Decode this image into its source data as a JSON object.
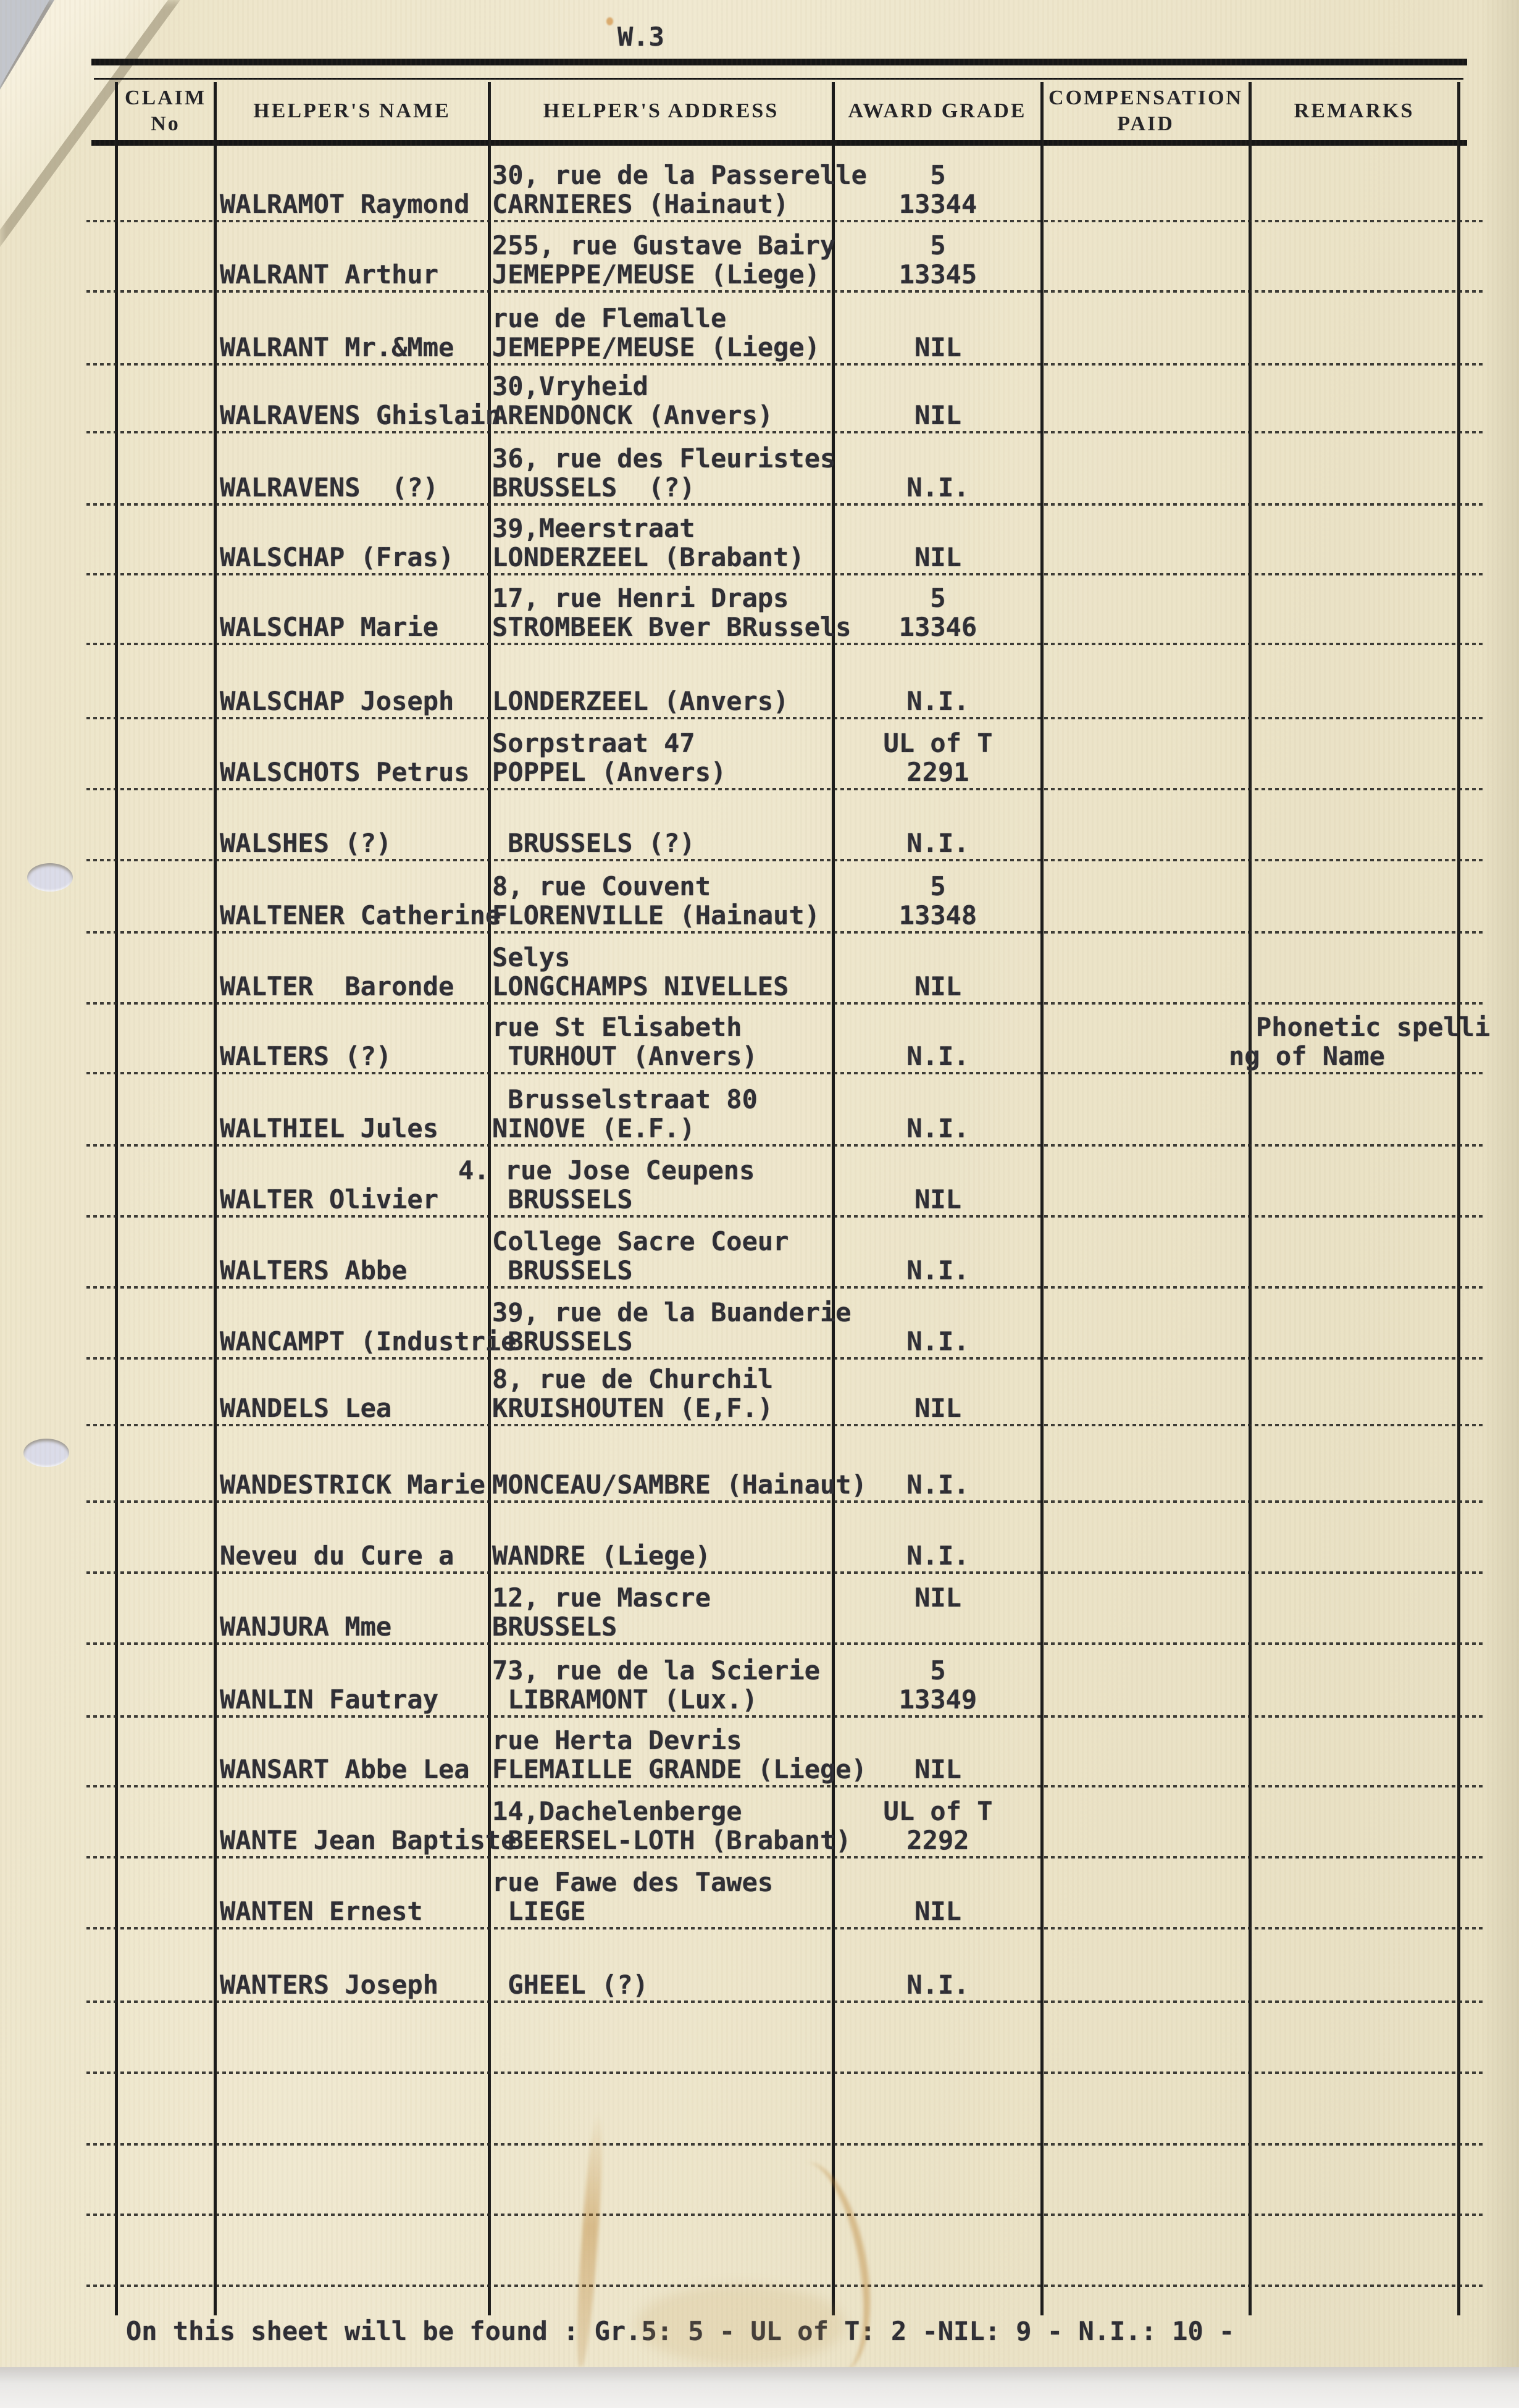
{
  "page_label": "W.3",
  "colors": {
    "paper": "#ece4c8",
    "ink": "#2d2d34",
    "table_line": "#1a1a1a",
    "punch_hole": "#dbdce9"
  },
  "table": {
    "columns": [
      {
        "label": "CLAIM No",
        "line1": "CLAIM",
        "line2": "No"
      },
      {
        "label": "HELPER'S NAME",
        "line1": "HELPER'S NAME",
        "line2": ""
      },
      {
        "label": "HELPER'S ADDRESS",
        "line1": "HELPER'S ADDRESS",
        "line2": ""
      },
      {
        "label": "AWARD GRADE",
        "line1": "AWARD GRADE",
        "line2": ""
      },
      {
        "label": "COMPENSATION PAID",
        "line1": "COMPENSATION",
        "line2": "PAID"
      },
      {
        "label": "REMARKS",
        "line1": "REMARKS",
        "line2": ""
      }
    ],
    "entries": [
      {
        "claim_no": "",
        "name": "WALRAMOT Raymond",
        "address": [
          "30, rue de la Passerelle",
          "CARNIERES (Hainaut)"
        ],
        "grade": [
          "5",
          "13344"
        ],
        "compensation": "",
        "remarks": []
      },
      {
        "claim_no": "",
        "name": "WALRANT Arthur",
        "address": [
          "255, rue Gustave Bairy",
          "JEMEPPE/MEUSE (Liege)"
        ],
        "grade": [
          "5",
          "13345"
        ],
        "compensation": "",
        "remarks": []
      },
      {
        "claim_no": "",
        "name": "WALRANT Mr.&Mme",
        "address": [
          "rue de Flemalle",
          "JEMEPPE/MEUSE (Liege)"
        ],
        "grade": [
          "NIL"
        ],
        "compensation": "",
        "remarks": []
      },
      {
        "claim_no": "",
        "name": "WALRAVENS Ghislain",
        "address": [
          "30,Vryheid",
          "ARENDONCK (Anvers)"
        ],
        "grade": [
          "NIL"
        ],
        "compensation": "",
        "remarks": []
      },
      {
        "claim_no": "",
        "name": "WALRAVENS  (?)",
        "address": [
          "36, rue des Fleuristes",
          "BRUSSELS  (?)"
        ],
        "grade": [
          "N.I."
        ],
        "compensation": "",
        "remarks": []
      },
      {
        "claim_no": "",
        "name": "WALSCHAP (Fras)",
        "address": [
          "39,Meerstraat",
          "LONDERZEEL (Brabant)"
        ],
        "grade": [
          "NIL"
        ],
        "compensation": "",
        "remarks": []
      },
      {
        "claim_no": "",
        "name": "WALSCHAP Marie",
        "address": [
          "17, rue Henri Draps",
          "STROMBEEK Bver BRussels"
        ],
        "grade": [
          "5",
          "13346"
        ],
        "compensation": "",
        "remarks": []
      },
      {
        "claim_no": "",
        "name": "WALSCHAP Joseph",
        "address": [
          "LONDERZEEL (Anvers)"
        ],
        "grade": [
          "N.I."
        ],
        "compensation": "",
        "remarks": []
      },
      {
        "claim_no": "",
        "name": "WALSCHOTS Petrus",
        "address": [
          "Sorpstraat 47",
          "POPPEL (Anvers)"
        ],
        "grade": [
          "UL of T",
          "2291"
        ],
        "compensation": "",
        "remarks": []
      },
      {
        "claim_no": "",
        "name": "WALSHES (?)",
        "address": [
          " BRUSSELS (?)"
        ],
        "grade": [
          "N.I."
        ],
        "compensation": "",
        "remarks": []
      },
      {
        "claim_no": "",
        "name": "WALTENER Catherine",
        "address": [
          "8, rue Couvent",
          "FLORENVILLE (Hainaut)"
        ],
        "grade": [
          "5",
          "13348"
        ],
        "compensation": "",
        "remarks": []
      },
      {
        "claim_no": "",
        "name": "WALTER  Baronde",
        "address": [
          "Selys",
          "LONGCHAMPS NIVELLES"
        ],
        "grade": [
          "NIL"
        ],
        "compensation": "",
        "remarks": []
      },
      {
        "claim_no": "",
        "name": "WALTERS (?)",
        "address": [
          "rue St Elisabeth",
          " TURHOUT (Anvers)"
        ],
        "grade": [
          "N.I."
        ],
        "compensation": "",
        "remarks": [
          "Phonetic spelli",
          "ng of Name"
        ]
      },
      {
        "claim_no": "",
        "name": "WALTHIEL Jules",
        "address": [
          " Brusselstraat 80",
          "NINOVE (E.F.)"
        ],
        "grade": [
          "N.I."
        ],
        "compensation": "",
        "remarks": []
      },
      {
        "claim_no": "",
        "name": "WALTER Olivier",
        "address": [
          "4. rue Jose Ceupens",
          " BRUSSELS"
        ],
        "grade": [
          "NIL"
        ],
        "compensation": "",
        "remarks": []
      },
      {
        "claim_no": "",
        "name": "WALTERS Abbe",
        "address": [
          "College Sacre Coeur",
          " BRUSSELS"
        ],
        "grade": [
          "N.I."
        ],
        "compensation": "",
        "remarks": []
      },
      {
        "claim_no": "",
        "name": "WANCAMPT (Industrie",
        "address": [
          "39, rue de la Buanderie",
          " BRUSSELS"
        ],
        "grade": [
          "N.I."
        ],
        "compensation": "",
        "remarks": []
      },
      {
        "claim_no": "",
        "name": "WANDELS Lea",
        "address": [
          "8, rue de Churchil",
          "KRUISHOUTEN (E,F.)"
        ],
        "grade": [
          "NIL"
        ],
        "compensation": "",
        "remarks": []
      },
      {
        "claim_no": "",
        "name": "WANDESTRICK Marie",
        "address": [
          "MONCEAU/SAMBRE (Hainaut)"
        ],
        "grade": [
          "N.I."
        ],
        "compensation": "",
        "remarks": []
      },
      {
        "claim_no": "",
        "name": "Neveu du Cure a",
        "address": [
          "WANDRE (Liege)"
        ],
        "grade": [
          "N.I."
        ],
        "compensation": "",
        "remarks": []
      },
      {
        "claim_no": "",
        "name": "WANJURA Mme",
        "address": [
          "12, rue Mascre",
          "BRUSSELS"
        ],
        "grade": [
          "NIL"
        ],
        "compensation": "",
        "remarks": []
      },
      {
        "claim_no": "",
        "name": "WANLIN Fautray",
        "address": [
          "73, rue de la Scierie",
          " LIBRAMONT (Lux.)"
        ],
        "grade": [
          "5",
          "13349"
        ],
        "compensation": "",
        "remarks": []
      },
      {
        "claim_no": "",
        "name": "WANSART Abbe Lea",
        "address": [
          "rue Herta Devris",
          "FLEMAILLE GRANDE (Liege)"
        ],
        "grade": [
          "NIL"
        ],
        "compensation": "",
        "remarks": []
      },
      {
        "claim_no": "",
        "name": "WANTE Jean Baptiste",
        "address": [
          "14,Dachelenberge",
          " BEERSEL-LOTH (Brabant)"
        ],
        "grade": [
          "UL of T",
          "2292"
        ],
        "compensation": "",
        "remarks": []
      },
      {
        "claim_no": "",
        "name": "WANTEN Ernest",
        "address": [
          "rue Fawe des Tawes",
          " LIEGE"
        ],
        "grade": [
          "NIL"
        ],
        "compensation": "",
        "remarks": []
      },
      {
        "claim_no": "",
        "name": "WANTERS Joseph",
        "address": [
          " GHEEL (?)"
        ],
        "grade": [
          "N.I."
        ],
        "compensation": "",
        "remarks": []
      }
    ]
  },
  "footer": "On this sheet will be found : Gr.5: 5 - UL of T: 2 -NIL: 9 - N.I.: 10 -"
}
